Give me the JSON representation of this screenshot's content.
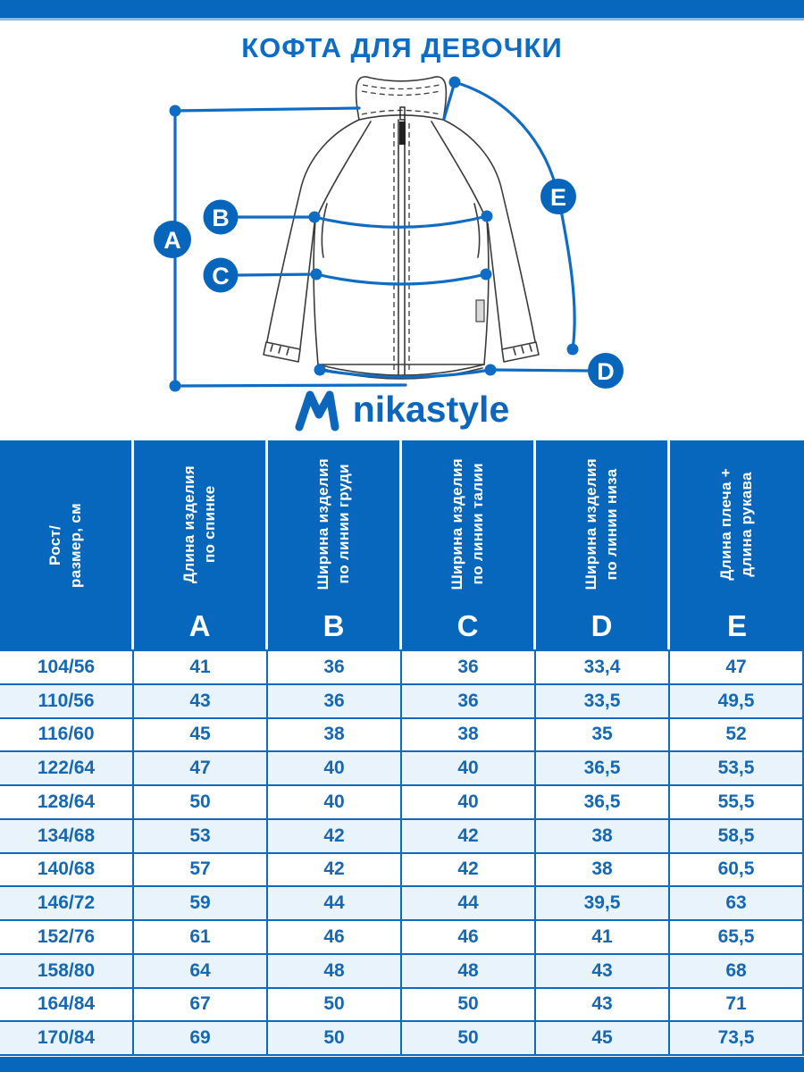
{
  "page": {
    "title": "КОФТА ДЛЯ ДЕВОЧКИ"
  },
  "brand": {
    "name": "nikastyle"
  },
  "diagram": {
    "points": [
      {
        "letter": "A"
      },
      {
        "letter": "B"
      },
      {
        "letter": "C"
      },
      {
        "letter": "D"
      },
      {
        "letter": "E"
      }
    ]
  },
  "table": {
    "size_column": {
      "line1": "Рост/",
      "line2": "размер, см"
    },
    "columns": [
      {
        "line1": "Длина изделия",
        "line2": "по спинке",
        "letter": "А"
      },
      {
        "line1": "Ширина изделия",
        "line2": "по линии груди",
        "letter": "В"
      },
      {
        "line1": "Ширина изделия",
        "line2": "по линии талии",
        "letter": "С"
      },
      {
        "line1": "Ширина изделия",
        "line2": "по линии низа",
        "letter": "D"
      },
      {
        "line1": "Длина плеча +",
        "line2": "длина рукава",
        "letter": "Е"
      }
    ],
    "rows": [
      {
        "size": "104/56",
        "values": [
          "41",
          "36",
          "36",
          "33,4",
          "47"
        ]
      },
      {
        "size": "110/56",
        "values": [
          "43",
          "36",
          "36",
          "33,5",
          "49,5"
        ]
      },
      {
        "size": "116/60",
        "values": [
          "45",
          "38",
          "38",
          "35",
          "52"
        ]
      },
      {
        "size": "122/64",
        "values": [
          "47",
          "40",
          "40",
          "36,5",
          "53,5"
        ]
      },
      {
        "size": "128/64",
        "values": [
          "50",
          "40",
          "40",
          "36,5",
          "55,5"
        ]
      },
      {
        "size": "134/68",
        "values": [
          "53",
          "42",
          "42",
          "38",
          "58,5"
        ]
      },
      {
        "size": "140/68",
        "values": [
          "57",
          "42",
          "42",
          "38",
          "60,5"
        ]
      },
      {
        "size": "146/72",
        "values": [
          "59",
          "44",
          "44",
          "39,5",
          "63"
        ]
      },
      {
        "size": "152/76",
        "values": [
          "61",
          "46",
          "46",
          "41",
          "65,5"
        ]
      },
      {
        "size": "158/80",
        "values": [
          "64",
          "48",
          "48",
          "43",
          "68"
        ]
      },
      {
        "size": "164/84",
        "values": [
          "67",
          "50",
          "50",
          "43",
          "71"
        ]
      },
      {
        "size": "170/84",
        "values": [
          "69",
          "50",
          "50",
          "45",
          "73,5"
        ]
      }
    ]
  },
  "colors": {
    "primary_blue": "#0667BD",
    "line_blue": "#0F6CC5",
    "text_blue": "#1568B5",
    "row_alt_blue": "#E9F3FB",
    "light_accent": "#8ABAE4"
  }
}
